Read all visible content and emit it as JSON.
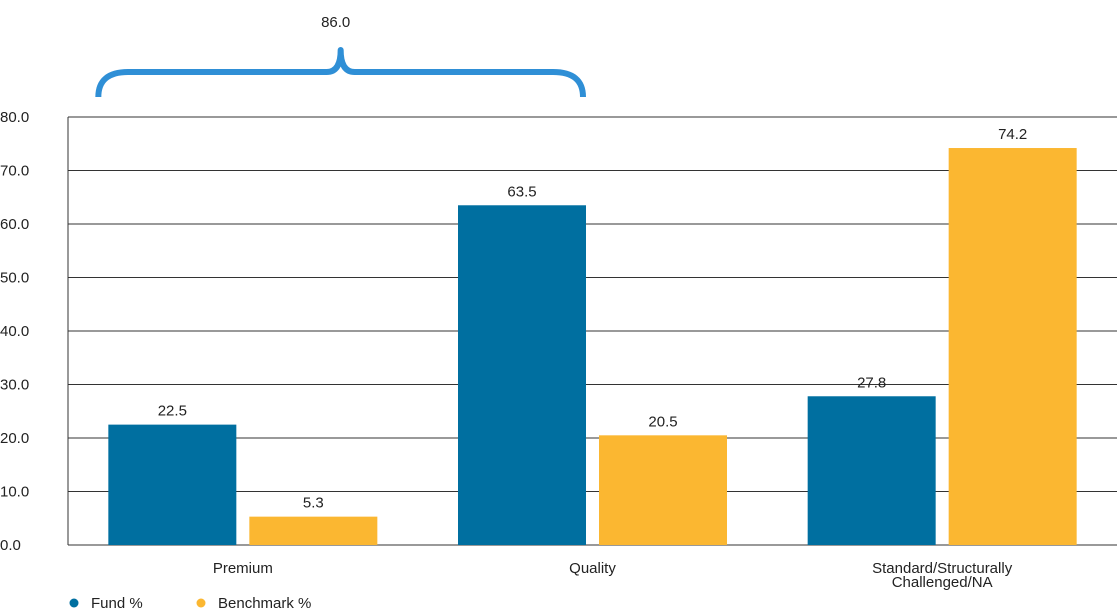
{
  "chart_data": {
    "type": "bar",
    "categories": [
      [
        "Premium"
      ],
      [
        "Quality"
      ],
      [
        "Standard/Structurally",
        "Challenged/NA"
      ]
    ],
    "series": [
      {
        "name": "Fund %",
        "color": "#006fa0",
        "values": [
          22.5,
          63.5,
          27.8
        ]
      },
      {
        "name": "Benchmark %",
        "color": "#fbb731",
        "values": [
          5.3,
          20.5,
          74.2
        ]
      }
    ],
    "ylim": [
      0,
      80
    ],
    "yticks": [
      "0.0",
      "10.0",
      "20.0",
      "30.0",
      "40.0",
      "50.0",
      "60.0",
      "70.0",
      "80.0"
    ],
    "grid": true,
    "legend_placement": "bottom-left",
    "annotation": {
      "text": "86.0",
      "type": "brace",
      "spans_categories": [
        0,
        1
      ],
      "color": "#2f8fd6"
    }
  }
}
